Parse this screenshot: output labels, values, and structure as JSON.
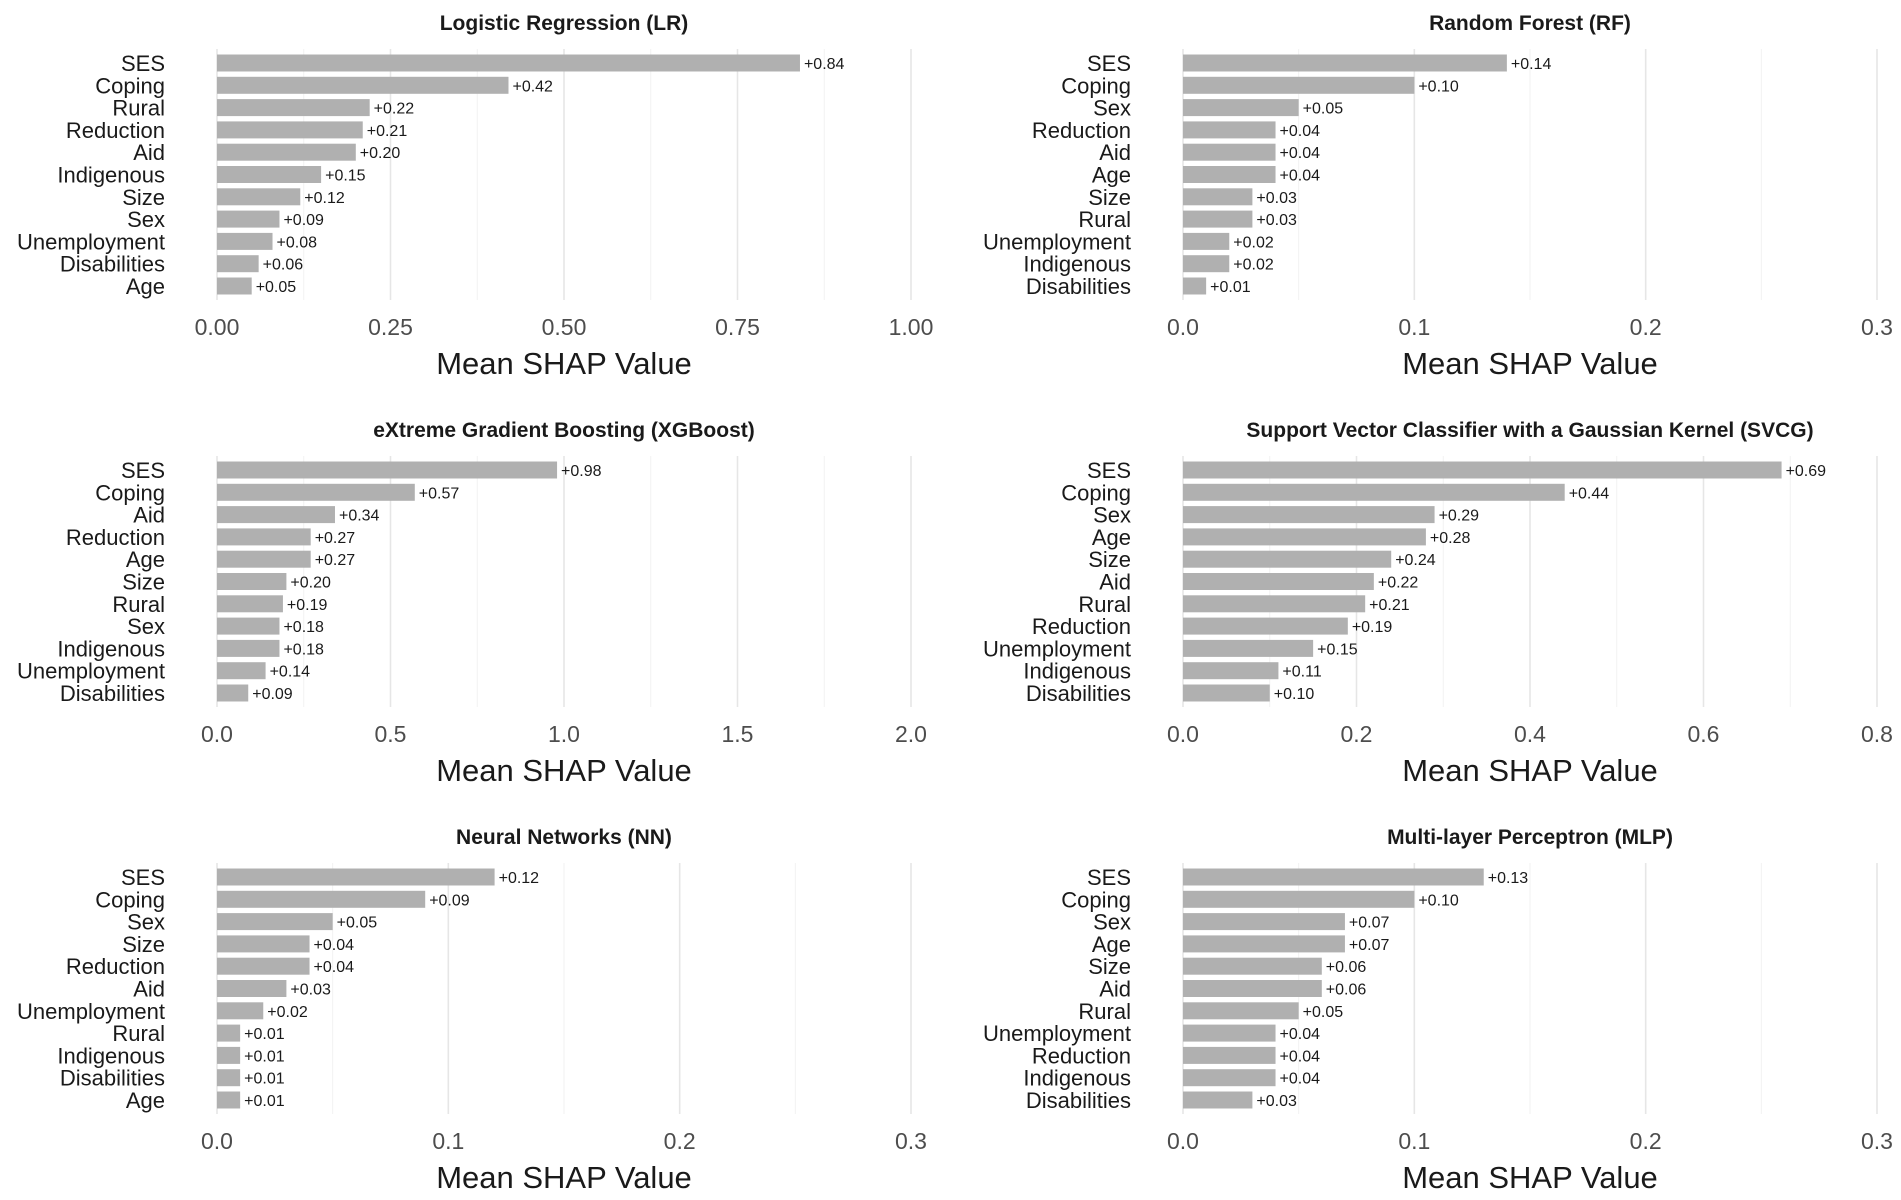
{
  "chart_data": [
    {
      "type": "bar",
      "orientation": "horizontal",
      "title": "Logistic Regression (LR)",
      "xlabel": "Mean SHAP Value",
      "ylabel": "",
      "xlim": [
        0,
        1.0
      ],
      "ticks": [
        0,
        0.25,
        0.5,
        0.75,
        1.0
      ],
      "tick_labels": [
        "0.00",
        "0.25",
        "0.50",
        "0.75",
        "1.00"
      ],
      "minor_grid": [
        0.125,
        0.375,
        0.625,
        0.875
      ],
      "categories": [
        "SES",
        "Coping",
        "Rural",
        "Reduction",
        "Aid",
        "Indigenous",
        "Size",
        "Sex",
        "Unemployment",
        "Disabilities",
        "Age"
      ],
      "values": [
        0.84,
        0.42,
        0.22,
        0.21,
        0.2,
        0.15,
        0.12,
        0.09,
        0.08,
        0.06,
        0.05
      ],
      "value_labels": [
        "+0.84",
        "+0.42",
        "+0.22",
        "+0.21",
        "+0.20",
        "+0.15",
        "+0.12",
        "+0.09",
        "+0.08",
        "+0.06",
        "+0.05"
      ]
    },
    {
      "type": "bar",
      "orientation": "horizontal",
      "title": "Random Forest (RF)",
      "xlabel": "Mean SHAP Value",
      "ylabel": "",
      "xlim": [
        0,
        0.3
      ],
      "ticks": [
        0,
        0.1,
        0.2,
        0.3
      ],
      "tick_labels": [
        "0.0",
        "0.1",
        "0.2",
        "0.3"
      ],
      "minor_grid": [
        0.05,
        0.15,
        0.25
      ],
      "categories": [
        "SES",
        "Coping",
        "Sex",
        "Reduction",
        "Aid",
        "Age",
        "Size",
        "Rural",
        "Unemployment",
        "Indigenous",
        "Disabilities"
      ],
      "values": [
        0.14,
        0.1,
        0.05,
        0.04,
        0.04,
        0.04,
        0.03,
        0.03,
        0.02,
        0.02,
        0.01
      ],
      "value_labels": [
        "+0.14",
        "+0.10",
        "+0.05",
        "+0.04",
        "+0.04",
        "+0.04",
        "+0.03",
        "+0.03",
        "+0.02",
        "+0.02",
        "+0.01"
      ]
    },
    {
      "type": "bar",
      "orientation": "horizontal",
      "title": "eXtreme Gradient Boosting (XGBoost)",
      "xlabel": "Mean SHAP Value",
      "ylabel": "",
      "xlim": [
        0,
        2.0
      ],
      "ticks": [
        0,
        0.5,
        1.0,
        1.5,
        2.0
      ],
      "tick_labels": [
        "0.0",
        "0.5",
        "1.0",
        "1.5",
        "2.0"
      ],
      "minor_grid": [
        0.25,
        0.75,
        1.25,
        1.75
      ],
      "categories": [
        "SES",
        "Coping",
        "Aid",
        "Reduction",
        "Age",
        "Size",
        "Rural",
        "Sex",
        "Indigenous",
        "Unemployment",
        "Disabilities"
      ],
      "values": [
        0.98,
        0.57,
        0.34,
        0.27,
        0.27,
        0.2,
        0.19,
        0.18,
        0.18,
        0.14,
        0.09
      ],
      "value_labels": [
        "+0.98",
        "+0.57",
        "+0.34",
        "+0.27",
        "+0.27",
        "+0.20",
        "+0.19",
        "+0.18",
        "+0.18",
        "+0.14",
        "+0.09"
      ]
    },
    {
      "type": "bar",
      "orientation": "horizontal",
      "title": "Support Vector Classifier with a Gaussian Kernel (SVCG)",
      "xlabel": "Mean SHAP Value",
      "ylabel": "",
      "xlim": [
        0,
        0.8
      ],
      "ticks": [
        0,
        0.2,
        0.4,
        0.6,
        0.8
      ],
      "tick_labels": [
        "0.0",
        "0.2",
        "0.4",
        "0.6",
        "0.8"
      ],
      "minor_grid": [
        0.1,
        0.3,
        0.5,
        0.7
      ],
      "categories": [
        "SES",
        "Coping",
        "Sex",
        "Age",
        "Size",
        "Aid",
        "Rural",
        "Reduction",
        "Unemployment",
        "Indigenous",
        "Disabilities"
      ],
      "values": [
        0.69,
        0.44,
        0.29,
        0.28,
        0.24,
        0.22,
        0.21,
        0.19,
        0.15,
        0.11,
        0.1
      ],
      "value_labels": [
        "+0.69",
        "+0.44",
        "+0.29",
        "+0.28",
        "+0.24",
        "+0.22",
        "+0.21",
        "+0.19",
        "+0.15",
        "+0.11",
        "+0.10"
      ]
    },
    {
      "type": "bar",
      "orientation": "horizontal",
      "title": "Neural Networks (NN)",
      "xlabel": "Mean SHAP Value",
      "ylabel": "",
      "xlim": [
        0,
        0.3
      ],
      "ticks": [
        0,
        0.1,
        0.2,
        0.3
      ],
      "tick_labels": [
        "0.0",
        "0.1",
        "0.2",
        "0.3"
      ],
      "minor_grid": [
        0.05,
        0.15,
        0.25
      ],
      "categories": [
        "SES",
        "Coping",
        "Sex",
        "Size",
        "Reduction",
        "Aid",
        "Unemployment",
        "Rural",
        "Indigenous",
        "Disabilities",
        "Age"
      ],
      "values": [
        0.12,
        0.09,
        0.05,
        0.04,
        0.04,
        0.03,
        0.02,
        0.01,
        0.01,
        0.01,
        0.01
      ],
      "value_labels": [
        "+0.12",
        "+0.09",
        "+0.05",
        "+0.04",
        "+0.04",
        "+0.03",
        "+0.02",
        "+0.01",
        "+0.01",
        "+0.01",
        "+0.01"
      ]
    },
    {
      "type": "bar",
      "orientation": "horizontal",
      "title": "Multi-layer Perceptron (MLP)",
      "xlabel": "Mean SHAP Value",
      "ylabel": "",
      "xlim": [
        0,
        0.3
      ],
      "ticks": [
        0,
        0.1,
        0.2,
        0.3
      ],
      "tick_labels": [
        "0.0",
        "0.1",
        "0.2",
        "0.3"
      ],
      "minor_grid": [
        0.05,
        0.15,
        0.25
      ],
      "categories": [
        "SES",
        "Coping",
        "Sex",
        "Age",
        "Size",
        "Aid",
        "Rural",
        "Unemployment",
        "Reduction",
        "Indigenous",
        "Disabilities"
      ],
      "values": [
        0.13,
        0.1,
        0.07,
        0.07,
        0.06,
        0.06,
        0.05,
        0.04,
        0.04,
        0.04,
        0.03
      ],
      "value_labels": [
        "+0.13",
        "+0.10",
        "+0.07",
        "+0.07",
        "+0.06",
        "+0.06",
        "+0.05",
        "+0.04",
        "+0.04",
        "+0.04",
        "+0.03"
      ]
    }
  ],
  "colors": {
    "bar": "#b0b0b0",
    "grid_major": "#e6e6e6",
    "grid_minor": "#f2f2f2",
    "text": "#1a1a1a",
    "tick_text": "#4d4d4d"
  }
}
